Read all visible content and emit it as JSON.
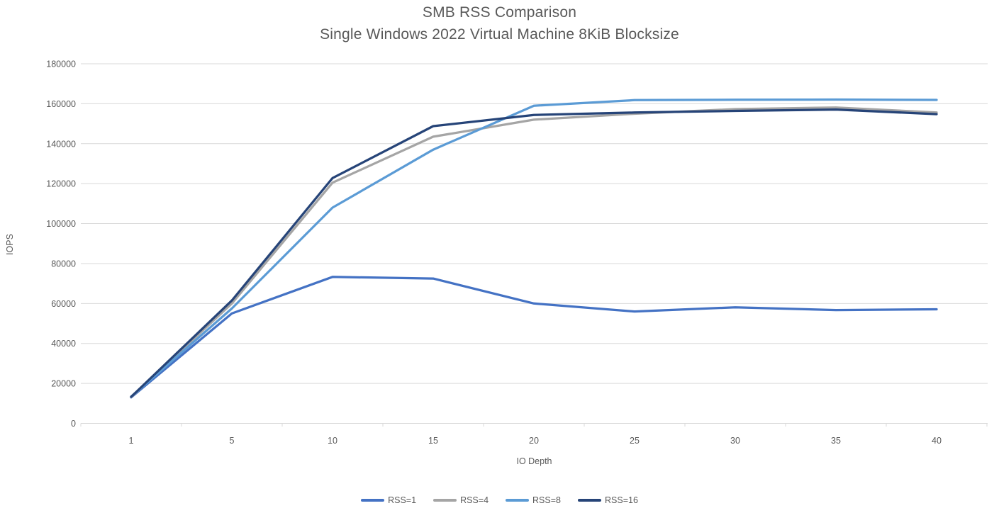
{
  "colors": {
    "gridline": "#D9D9D9",
    "axis_text": "#595959",
    "title_text": "#595959"
  },
  "chart_data": {
    "type": "line",
    "title": "SMB RSS Comparison",
    "subtitle": "Single Windows 2022 Virtual Machine 8KiB Blocksize",
    "xlabel": "IO Depth",
    "ylabel": "IOPS",
    "x_axis_type": "categorical",
    "categories": [
      1,
      5,
      10,
      15,
      20,
      25,
      30,
      35,
      40
    ],
    "ylim": [
      0,
      180000
    ],
    "y_ticks": [
      0,
      20000,
      40000,
      60000,
      80000,
      100000,
      120000,
      140000,
      160000,
      180000
    ],
    "grid": true,
    "legend_position": "bottom-center",
    "series": [
      {
        "name": "RSS=1",
        "color": "#4472C4",
        "values": [
          13000,
          55000,
          73300,
          72500,
          60000,
          56000,
          58100,
          56700,
          57100
        ]
      },
      {
        "name": "RSS=4",
        "color": "#A5A5A5",
        "values": [
          13200,
          60000,
          120500,
          143500,
          152000,
          155000,
          157300,
          158100,
          155600
        ]
      },
      {
        "name": "RSS=8",
        "color": "#5B9BD5",
        "values": [
          13400,
          57500,
          108000,
          137000,
          159000,
          161800,
          162000,
          162100,
          161900
        ]
      },
      {
        "name": "RSS=16",
        "color": "#264478",
        "values": [
          13300,
          61500,
          122800,
          148800,
          154400,
          155600,
          156400,
          157100,
          154800
        ]
      }
    ]
  }
}
